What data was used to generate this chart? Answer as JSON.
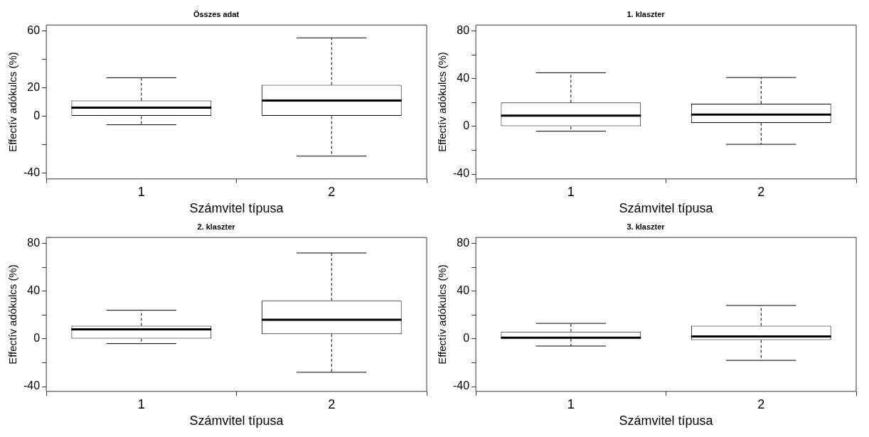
{
  "chart_data": [
    {
      "type": "box",
      "title": "Összes adat",
      "xlabel": "Számvitel típusa",
      "ylabel": "Effectív adókulcs (%)",
      "categories": [
        "1",
        "2"
      ],
      "boxes": [
        {
          "low": -6,
          "q1": 0,
          "median": 6,
          "q3": 11,
          "high": 27
        },
        {
          "low": -28,
          "q1": 0,
          "median": 11,
          "q3": 22,
          "high": 55
        }
      ],
      "ylim": [
        -44,
        64
      ],
      "yticks": [
        -40,
        {
          "value": -20,
          "label": null
        },
        0,
        20,
        {
          "value": 40,
          "label": null
        },
        60
      ],
      "grid": false
    },
    {
      "type": "box",
      "title": "1. klaszter",
      "xlabel": "Számvitel típusa",
      "ylabel": "Effectív adókulcs (%)",
      "categories": [
        "1",
        "2"
      ],
      "boxes": [
        {
          "low": -4,
          "q1": 0,
          "median": 9,
          "q3": 20,
          "high": 45
        },
        {
          "low": -15,
          "q1": 3,
          "median": 10,
          "q3": 19,
          "high": 41
        }
      ],
      "ylim": [
        -44,
        85
      ],
      "yticks": [
        -40,
        {
          "value": -20,
          "label": null
        },
        0,
        {
          "value": 20,
          "label": null
        },
        40,
        {
          "value": 60,
          "label": null
        },
        80
      ],
      "grid": false
    },
    {
      "type": "box",
      "title": "2. klaszter",
      "xlabel": "Számvitel típusa",
      "ylabel": "Effectív adókulcs (%)",
      "categories": [
        "1",
        "2"
      ],
      "boxes": [
        {
          "low": -4,
          "q1": 0,
          "median": 8,
          "q3": 11,
          "high": 24
        },
        {
          "low": -28,
          "q1": 4,
          "median": 16,
          "q3": 32,
          "high": 72
        }
      ],
      "ylim": [
        -44,
        85
      ],
      "yticks": [
        -40,
        {
          "value": -20,
          "label": null
        },
        0,
        {
          "value": 20,
          "label": null
        },
        40,
        {
          "value": 60,
          "label": null
        },
        80
      ],
      "grid": false
    },
    {
      "type": "box",
      "title": "3. klaszter",
      "xlabel": "Számvitel típusa",
      "ylabel": "Effectív adókulcs (%)",
      "categories": [
        "1",
        "2"
      ],
      "boxes": [
        {
          "low": -6,
          "q1": 0,
          "median": 1,
          "q3": 6,
          "high": 13
        },
        {
          "low": -18,
          "q1": -1,
          "median": 2,
          "q3": 11,
          "high": 28
        }
      ],
      "ylim": [
        -44,
        85
      ],
      "yticks": [
        -40,
        {
          "value": -20,
          "label": null
        },
        0,
        {
          "value": 20,
          "label": null
        },
        40,
        {
          "value": 60,
          "label": null
        },
        80
      ],
      "grid": false
    }
  ]
}
